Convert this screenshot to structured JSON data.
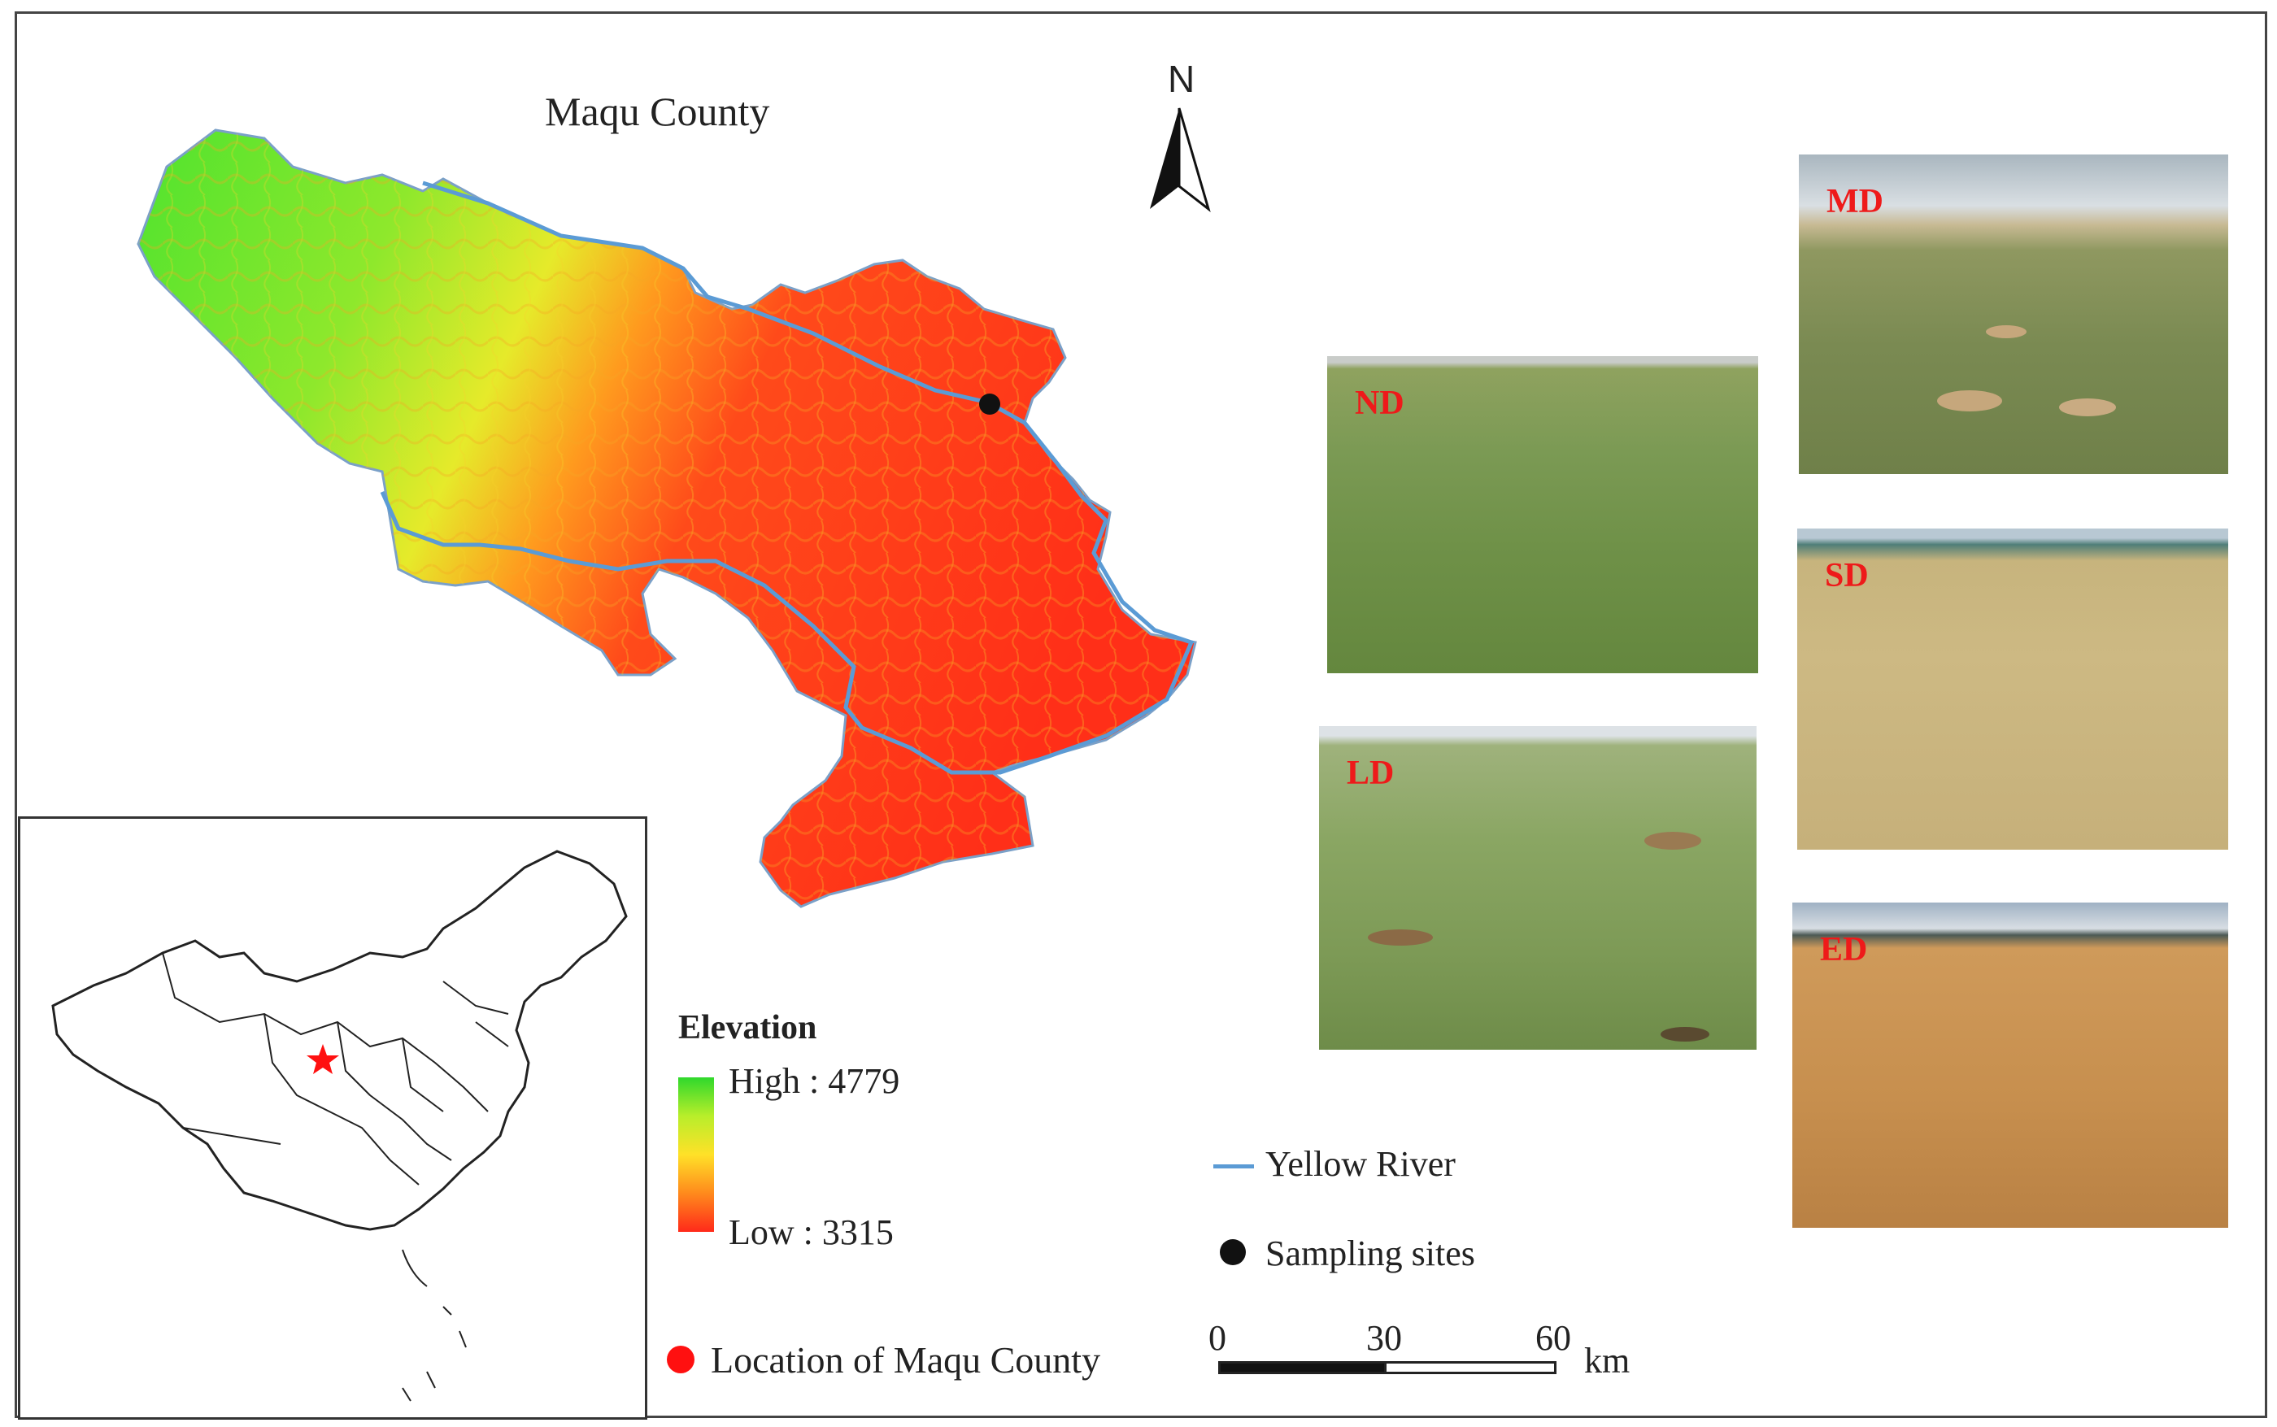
{
  "map_title": "Maqu County",
  "north_label": "N",
  "legend": {
    "title": "Elevation",
    "high_label": "High : 4779",
    "low_label": "Low : 3315",
    "location_label": "Location of Maqu County",
    "river_label": "Yellow River",
    "sites_label": "Sampling sites"
  },
  "scale": {
    "ticks": [
      "0",
      "30",
      "60"
    ],
    "unit": "km"
  },
  "photos": {
    "nd": "ND",
    "ld": "LD",
    "md": "MD",
    "sd": "SD",
    "ed": "ED"
  },
  "colors": {
    "high": "#2fd82c",
    "low": "#ff2a1a",
    "river": "#5b9bd5",
    "location_marker": "#ff1010",
    "photo_label": "#ee1a1a"
  }
}
